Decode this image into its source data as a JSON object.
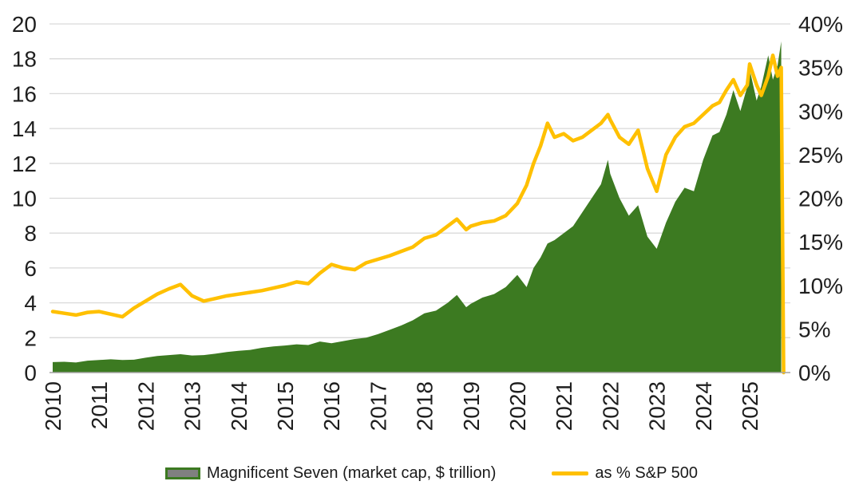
{
  "chart_data": {
    "type": "area",
    "title": "",
    "x": [
      2010.0,
      2010.25,
      2010.5,
      2010.75,
      2011.0,
      2011.25,
      2011.5,
      2011.75,
      2012.0,
      2012.25,
      2012.5,
      2012.75,
      2013.0,
      2013.25,
      2013.5,
      2013.75,
      2014.0,
      2014.25,
      2014.5,
      2014.75,
      2015.0,
      2015.25,
      2015.5,
      2015.75,
      2016.0,
      2016.25,
      2016.5,
      2016.75,
      2017.0,
      2017.25,
      2017.5,
      2017.75,
      2018.0,
      2018.25,
      2018.5,
      2018.7,
      2018.9,
      2019.0,
      2019.25,
      2019.5,
      2019.75,
      2020.0,
      2020.2,
      2020.35,
      2020.5,
      2020.65,
      2020.8,
      2021.0,
      2021.2,
      2021.4,
      2021.6,
      2021.8,
      2021.95,
      2022.0,
      2022.2,
      2022.4,
      2022.6,
      2022.8,
      2023.0,
      2023.2,
      2023.4,
      2023.6,
      2023.8,
      2024.0,
      2024.2,
      2024.35,
      2024.5,
      2024.65,
      2024.8,
      2024.95,
      2025.0,
      2025.15,
      2025.25,
      2025.4,
      2025.5,
      2025.6,
      2025.68
    ],
    "series": [
      {
        "name": "Magnificent Seven (market cap, $ trillion)",
        "type": "area",
        "axis": "left",
        "color": "#3C7A21",
        "values": [
          0.6,
          0.62,
          0.58,
          0.68,
          0.72,
          0.76,
          0.72,
          0.74,
          0.85,
          0.95,
          1.0,
          1.05,
          0.98,
          1.0,
          1.08,
          1.18,
          1.25,
          1.3,
          1.42,
          1.5,
          1.55,
          1.62,
          1.58,
          1.78,
          1.68,
          1.8,
          1.92,
          2.0,
          2.2,
          2.45,
          2.7,
          3.0,
          3.4,
          3.55,
          4.0,
          4.45,
          3.75,
          3.95,
          4.3,
          4.5,
          4.9,
          5.6,
          4.9,
          6.0,
          6.6,
          7.4,
          7.6,
          8.0,
          8.4,
          9.2,
          10.0,
          10.8,
          12.2,
          11.4,
          10.0,
          9.0,
          9.6,
          7.8,
          7.1,
          8.6,
          9.8,
          10.6,
          10.4,
          12.2,
          13.6,
          13.8,
          14.8,
          16.2,
          15.0,
          16.4,
          17.4,
          15.6,
          16.4,
          18.2,
          16.8,
          17.6,
          19.0
        ]
      },
      {
        "name": "as %  S&P 500",
        "type": "line",
        "axis": "right",
        "color": "#FFC000",
        "values": [
          7.0,
          6.8,
          6.6,
          6.9,
          7.0,
          6.7,
          6.4,
          7.4,
          8.2,
          9.0,
          9.6,
          10.1,
          8.8,
          8.2,
          8.5,
          8.8,
          9.0,
          9.2,
          9.4,
          9.7,
          10.0,
          10.4,
          10.2,
          11.4,
          12.4,
          12.0,
          11.8,
          12.6,
          13.0,
          13.4,
          13.9,
          14.4,
          15.4,
          15.8,
          16.8,
          17.6,
          16.4,
          16.8,
          17.2,
          17.4,
          18.0,
          19.4,
          21.5,
          24.0,
          26.0,
          28.6,
          27.0,
          27.4,
          26.6,
          27.0,
          27.8,
          28.6,
          29.6,
          29.0,
          27.0,
          26.2,
          27.8,
          23.4,
          20.8,
          25.0,
          27.0,
          28.2,
          28.6,
          29.6,
          30.6,
          31.0,
          32.4,
          33.6,
          31.8,
          33.0,
          35.4,
          33.0,
          31.8,
          34.0,
          36.4,
          34.0,
          35.0
        ]
      }
    ],
    "left_axis": {
      "min": 0,
      "max": 20,
      "step": 2,
      "tick_labels": [
        "0",
        "2",
        "4",
        "6",
        "8",
        "10",
        "12",
        "14",
        "16",
        "18",
        "20"
      ]
    },
    "right_axis": {
      "min": 0,
      "max": 40,
      "step": 5,
      "tick_labels": [
        "0%",
        "5%",
        "10%",
        "15%",
        "20%",
        "25%",
        "30%",
        "35%",
        "40%"
      ]
    },
    "x_ticks": [
      "2010",
      "2011",
      "2012",
      "2013",
      "2014",
      "2015",
      "2016",
      "2017",
      "2018",
      "2019",
      "2020",
      "2021",
      "2022",
      "2023",
      "2024",
      "2025"
    ],
    "grid": "horizontal",
    "legend_position": "bottom",
    "end_cap": "line-drops-to-zero-at-right-edge"
  },
  "colors": {
    "area_green": "#3C7A21",
    "line_yellow": "#FFC000",
    "gridline": "#D9D9D9",
    "axis_line": "#A6A6A6",
    "axis_text": "#1F1F1F",
    "legend_swatch_fill": "#808080"
  },
  "legend": {
    "area_label": "Magnificent Seven (market cap, $ trillion)",
    "line_label": "as %  S&P 500"
  }
}
